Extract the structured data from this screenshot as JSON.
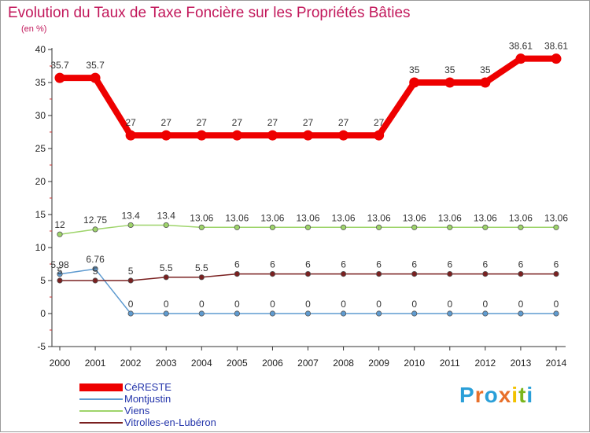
{
  "title": "Evolution du Taux de Taxe Foncière sur les Propriétés Bâties",
  "subtitle": "(en %)",
  "logo": {
    "letters": [
      "P",
      "r",
      "o",
      "x",
      "i",
      "t",
      "i"
    ],
    "colors": [
      "#2a9fd8",
      "#e8702a",
      "#2a9fd8",
      "#e8702a",
      "#f2c200",
      "#7ab51d",
      "#2a9fd8"
    ]
  },
  "chart_data": {
    "type": "line",
    "title": "Evolution du Taux de Taxe Foncière sur les Propriétés Bâties",
    "ylabel": "(en %)",
    "xlabel": "",
    "categories": [
      "2000",
      "2001",
      "2002",
      "2003",
      "2004",
      "2005",
      "2006",
      "2007",
      "2008",
      "2009",
      "2010",
      "2011",
      "2012",
      "2013",
      "2014"
    ],
    "ylim": [
      -5,
      40
    ],
    "yticks": [
      -5,
      0,
      5,
      10,
      15,
      20,
      25,
      30,
      35,
      40
    ],
    "grid": false,
    "legend_position": "bottom-left",
    "series": [
      {
        "name": "CéRESTE",
        "color": "#ee0000",
        "emphasis": true,
        "values": [
          35.7,
          35.7,
          27,
          27,
          27,
          27,
          27,
          27,
          27,
          27,
          35,
          35,
          35,
          38.61,
          38.61
        ],
        "labels": [
          "35.7",
          "35.7",
          "27",
          "27",
          "27",
          "27",
          "27",
          "27",
          "27",
          "27",
          "35",
          "35",
          "35",
          "38.61",
          "38.61"
        ]
      },
      {
        "name": "Montjustin",
        "color": "#5f9bd0",
        "values": [
          5.98,
          6.76,
          0,
          0,
          0,
          0,
          0,
          0,
          0,
          0,
          0,
          0,
          0,
          0,
          0
        ],
        "labels": [
          "5.98",
          "6.76",
          "0",
          "0",
          "0",
          "0",
          "0",
          "0",
          "0",
          "0",
          "0",
          "0",
          "0",
          "0",
          "0"
        ]
      },
      {
        "name": "Viens",
        "color": "#9ed46a",
        "values": [
          12,
          12.75,
          13.4,
          13.4,
          13.06,
          13.06,
          13.06,
          13.06,
          13.06,
          13.06,
          13.06,
          13.06,
          13.06,
          13.06,
          13.06
        ],
        "labels": [
          "12",
          "12.75",
          "13.4",
          "13.4",
          "13.06",
          "13.06",
          "13.06",
          "13.06",
          "13.06",
          "13.06",
          "13.06",
          "13.06",
          "13.06",
          "13.06",
          "13.06"
        ]
      },
      {
        "name": "Vitrolles-en-Lubéron",
        "color": "#7a2020",
        "values": [
          5,
          5,
          5,
          5.5,
          5.5,
          6,
          6,
          6,
          6,
          6,
          6,
          6,
          6,
          6,
          6
        ],
        "labels": [
          "5",
          "5",
          "5",
          "5.5",
          "5.5",
          "6",
          "6",
          "6",
          "6",
          "6",
          "6",
          "6",
          "6",
          "6",
          "6"
        ]
      }
    ]
  }
}
